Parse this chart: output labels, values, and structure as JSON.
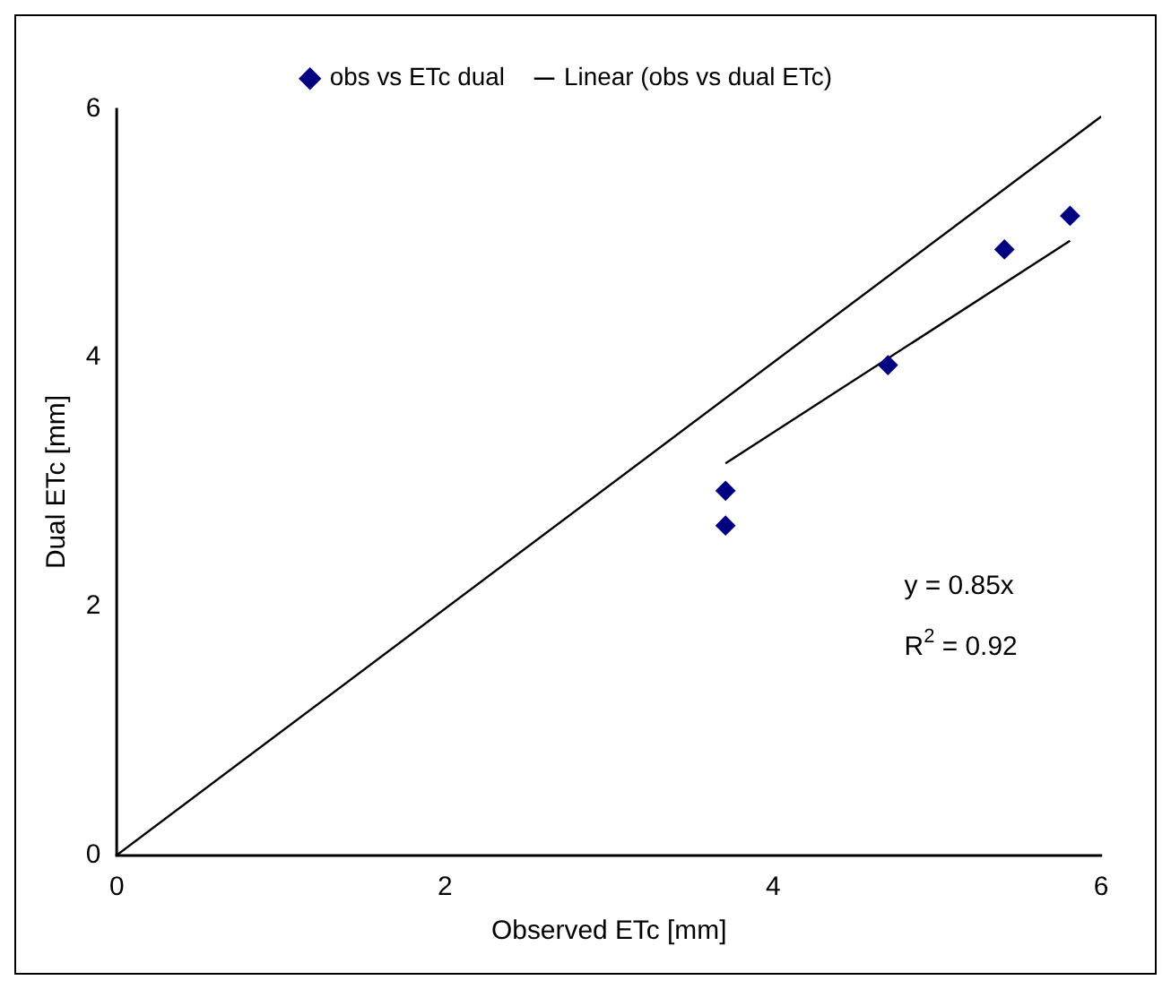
{
  "chart_data": {
    "type": "scatter",
    "xlabel": "Observed ETc [mm]",
    "ylabel": "Dual ETc [mm]",
    "xlim": [
      0,
      6
    ],
    "ylim": [
      0,
      6
    ],
    "xticks": [
      0,
      2,
      4,
      6
    ],
    "yticks": [
      0,
      2,
      4,
      6
    ],
    "grid": false,
    "legend": "top",
    "annotations": [
      "y = 0.85x",
      "R$^{2}$ = 0.92"
    ],
    "series": [
      {
        "type": "scatter",
        "name": "obs vs ETc dual",
        "color": "#000080",
        "marker": "diamond",
        "x": [
          3.71,
          3.71,
          4.7,
          5.41,
          5.81
        ],
        "values": [
          2.93,
          2.65,
          3.94,
          4.87,
          5.14
        ]
      },
      {
        "type": "line",
        "name": "Linear (obs vs dual ETc)",
        "color": "#000000",
        "line_style": "solid",
        "x": [
          3.71,
          5.81
        ],
        "values": [
          3.15,
          4.94
        ]
      },
      {
        "type": "line",
        "color": "#000000",
        "line_style": "solid",
        "x": [
          0,
          6
        ],
        "values": [
          0,
          5.94
        ]
      }
    ]
  }
}
